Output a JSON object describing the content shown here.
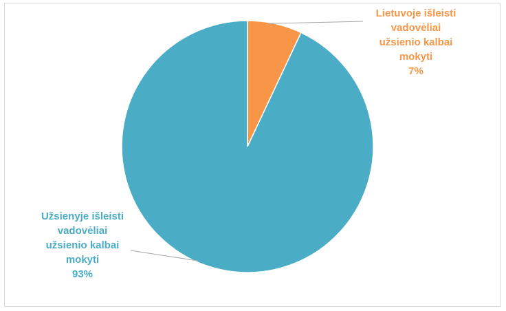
{
  "chart_data": {
    "type": "pie",
    "slices": [
      {
        "lines": [
          "Lietuvoje išleisti",
          "vadovėliai",
          "užsienio kalbai",
          "mokyti"
        ],
        "percent_label": "7%",
        "value": 7,
        "color": "#f79646"
      },
      {
        "lines": [
          "Užsienyje išleisti",
          "vadovėliai",
          "užsienio kalbai",
          "mokyti"
        ],
        "percent_label": "93%",
        "value": 93,
        "color": "#4bacc6"
      }
    ],
    "start_angle_deg": 0,
    "direction": "clockwise",
    "legend": "none",
    "leader_color": "#a6a6a6"
  }
}
